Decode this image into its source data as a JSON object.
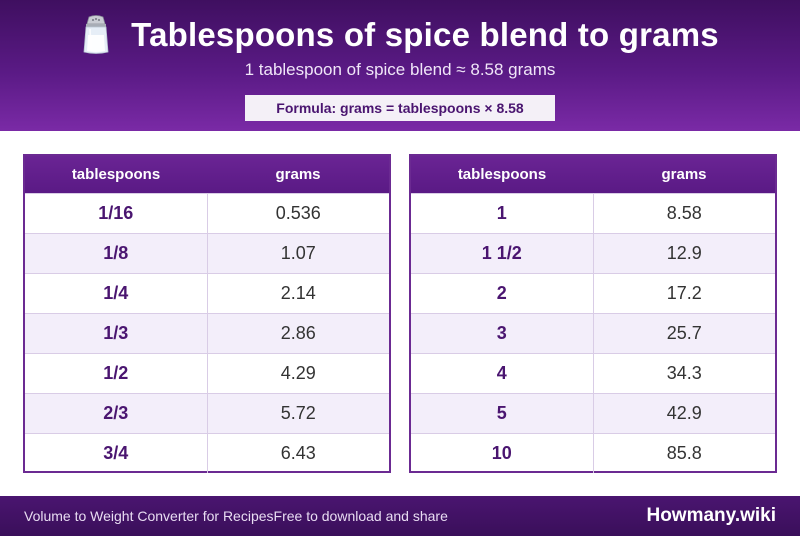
{
  "header": {
    "icon": "salt-shaker-icon",
    "title": "Tablespoons of spice blend to grams",
    "subtitle": "1 tablespoon of spice blend ≈ 8.58 grams",
    "formula": "Formula: grams = tablespoons × 8.58"
  },
  "columns": {
    "tablespoons": "tablespoons",
    "grams": "grams"
  },
  "left_table": {
    "rows": [
      {
        "tbsp": "1/16",
        "grams": "0.536"
      },
      {
        "tbsp": "1/8",
        "grams": "1.07"
      },
      {
        "tbsp": "1/4",
        "grams": "2.14"
      },
      {
        "tbsp": "1/3",
        "grams": "2.86"
      },
      {
        "tbsp": "1/2",
        "grams": "4.29"
      },
      {
        "tbsp": "2/3",
        "grams": "5.72"
      },
      {
        "tbsp": "3/4",
        "grams": "6.43"
      }
    ]
  },
  "right_table": {
    "rows": [
      {
        "tbsp": "1",
        "grams": "8.58"
      },
      {
        "tbsp": "1 1/2",
        "grams": "12.9"
      },
      {
        "tbsp": "2",
        "grams": "17.2"
      },
      {
        "tbsp": "3",
        "grams": "25.7"
      },
      {
        "tbsp": "4",
        "grams": "34.3"
      },
      {
        "tbsp": "5",
        "grams": "42.9"
      },
      {
        "tbsp": "10",
        "grams": "85.8"
      }
    ]
  },
  "footer": {
    "left": "Volume to Weight Converter for Recipes",
    "middle": "Free to download and share",
    "brand": "Howmany.wiki"
  },
  "colors": {
    "header_dark": "#3f0f60",
    "header_light": "#7a2aa6",
    "accent_text": "#4a1570",
    "row_alt": "#f3eefa"
  }
}
